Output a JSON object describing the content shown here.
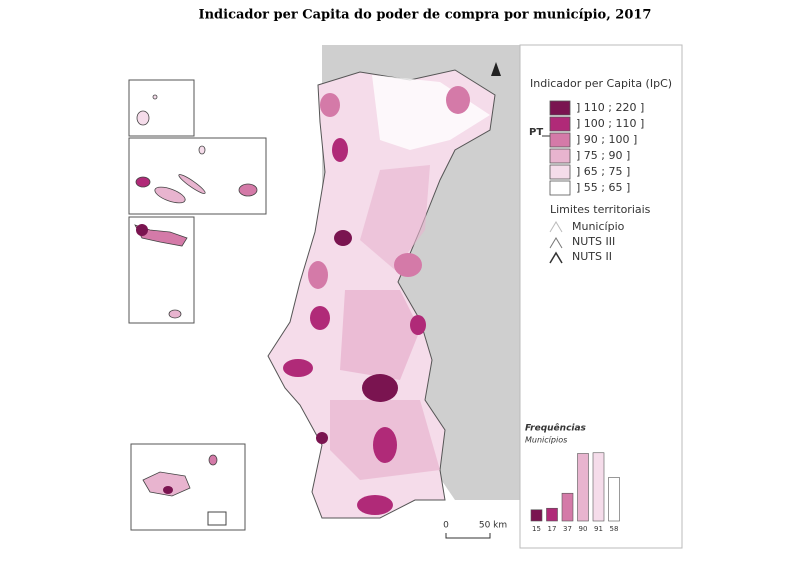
{
  "title": "Indicador per Capita do poder de compra por município, 2017",
  "legend": {
    "title": "Indicador per Capita (IpC)",
    "classes": [
      {
        "label": "] 110 ; 220 ]",
        "color": "#7a1450"
      },
      {
        "label": "] 100 ; 110 ]",
        "color": "#b02a78"
      },
      {
        "label": "] 90 ; 100 ]",
        "color": "#d47aa8"
      },
      {
        "label": "] 75 ; 90 ]",
        "color": "#e8b4cf"
      },
      {
        "label": "] 65 ; 75 ]",
        "color": "#f5dcea"
      },
      {
        "label": "] 55 ; 65 ]",
        "color": "#ffffff"
      }
    ],
    "pt_label": "PT",
    "limits_title": "Limites territoriais",
    "limits": [
      "Município",
      "NUTS III",
      "NUTS II"
    ]
  },
  "histogram": {
    "title": "Frequências",
    "subtitle": "Municípios",
    "counts": [
      15,
      17,
      37,
      90,
      91,
      58
    ]
  },
  "scale_bar": {
    "labels": [
      "0",
      "50 km"
    ]
  }
}
